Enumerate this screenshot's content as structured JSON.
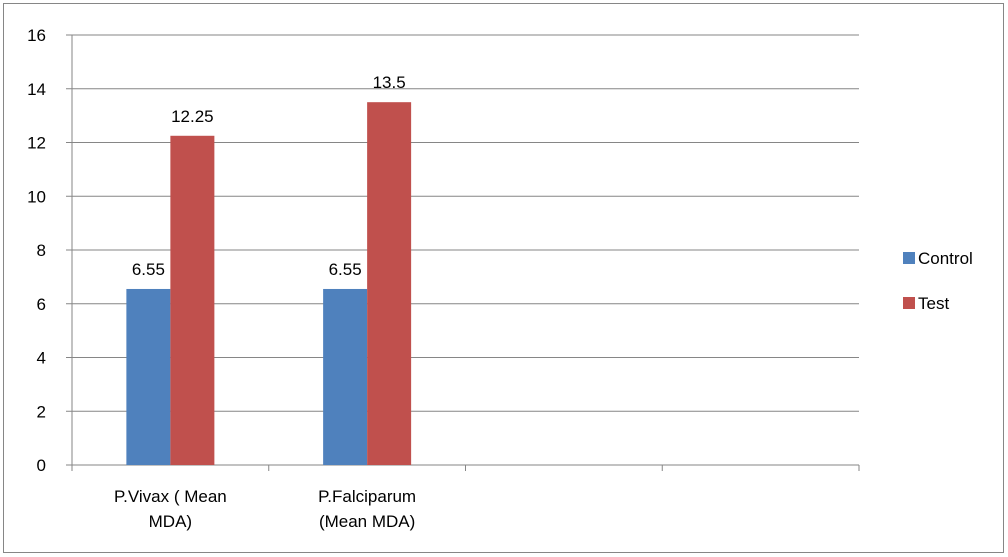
{
  "chart_data": {
    "type": "bar",
    "categories": [
      [
        "P.Vivax ( Mean",
        "MDA)"
      ],
      [
        "P.Falciparum",
        "(Mean MDA)"
      ],
      [
        "",
        ""
      ],
      [
        "",
        ""
      ]
    ],
    "series": [
      {
        "name": "Control",
        "values": [
          6.55,
          6.55,
          null,
          null
        ],
        "labels": [
          "6.55",
          "6.55",
          "",
          ""
        ]
      },
      {
        "name": "Test",
        "values": [
          12.25,
          13.5,
          null,
          null
        ],
        "labels": [
          "12.25",
          "13.5",
          "",
          ""
        ]
      }
    ],
    "ylim": [
      0,
      16
    ],
    "yticks": [
      "0",
      "2",
      "4",
      "6",
      "8",
      "10",
      "12",
      "14",
      "16"
    ],
    "grid": true,
    "legend": "right",
    "colors": {
      "Control": "#4f81bd",
      "Test": "#c0504d",
      "grid": "#868686"
    },
    "title": "",
    "xlabel": "",
    "ylabel": ""
  }
}
